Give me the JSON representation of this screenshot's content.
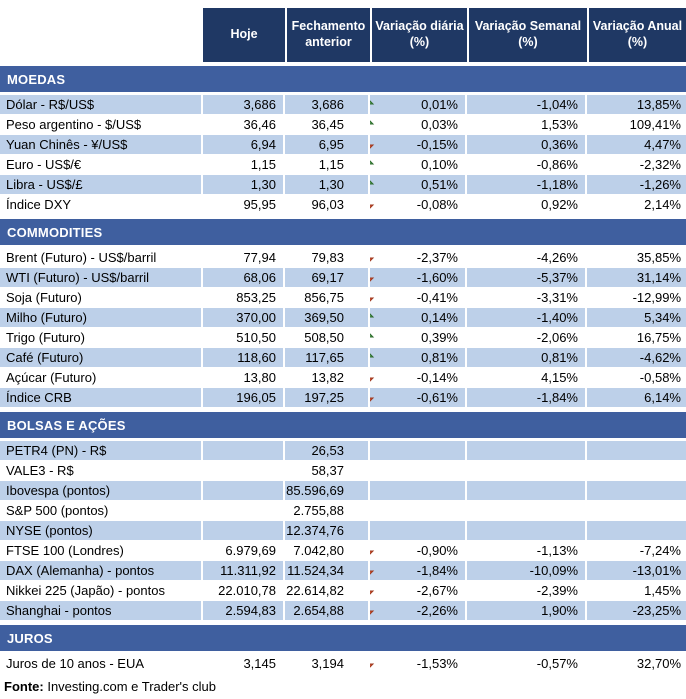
{
  "colors": {
    "header_bg": "#1F3864",
    "section_band_bg": "#3F5F9F",
    "row_shade": "#BDD0E9",
    "arrow_up": "#55A055",
    "arrow_down": "#D2502F"
  },
  "header": {
    "columns": [
      "Hoje",
      "Fechamento anterior",
      "Variação diária (%)",
      "Variação Semanal (%)",
      "Variação Anual (%)"
    ]
  },
  "sections": [
    {
      "name": "MOEDAS",
      "rows": [
        {
          "label": "Dólar - R$/US$",
          "hoje": "3,686",
          "fechamento": "3,686",
          "arrow": "up",
          "diaria": "0,01%",
          "semanal": "-1,04%",
          "anual": "13,85%"
        },
        {
          "label": "Peso argentino - $/US$",
          "hoje": "36,46",
          "fechamento": "36,45",
          "arrow": "up",
          "diaria": "0,03%",
          "semanal": "1,53%",
          "anual": "109,41%"
        },
        {
          "label": "Yuan Chinês - ¥/US$",
          "hoje": "6,94",
          "fechamento": "6,95",
          "arrow": "down",
          "diaria": "-0,15%",
          "semanal": "0,36%",
          "anual": "4,47%"
        },
        {
          "label": "Euro - US$/€",
          "hoje": "1,15",
          "fechamento": "1,15",
          "arrow": "up",
          "diaria": "0,10%",
          "semanal": "-0,86%",
          "anual": "-2,32%"
        },
        {
          "label": "Libra - US$/£",
          "hoje": "1,30",
          "fechamento": "1,30",
          "arrow": "up",
          "diaria": "0,51%",
          "semanal": "-1,18%",
          "anual": "-1,26%"
        },
        {
          "label": "Índice DXY",
          "hoje": "95,95",
          "fechamento": "96,03",
          "arrow": "down",
          "diaria": "-0,08%",
          "semanal": "0,92%",
          "anual": "2,14%"
        }
      ]
    },
    {
      "name": "COMMODITIES",
      "rows": [
        {
          "label": "Brent (Futuro) - US$/barril",
          "hoje": "77,94",
          "fechamento": "79,83",
          "arrow": "down",
          "diaria": "-2,37%",
          "semanal": "-4,26%",
          "anual": "35,85%"
        },
        {
          "label": "WTI (Futuro) - US$/barril",
          "hoje": "68,06",
          "fechamento": "69,17",
          "arrow": "down",
          "diaria": "-1,60%",
          "semanal": "-5,37%",
          "anual": "31,14%"
        },
        {
          "label": "Soja (Futuro)",
          "hoje": "853,25",
          "fechamento": "856,75",
          "arrow": "down",
          "diaria": "-0,41%",
          "semanal": "-3,31%",
          "anual": "-12,99%"
        },
        {
          "label": "Milho (Futuro)",
          "hoje": "370,00",
          "fechamento": "369,50",
          "arrow": "up",
          "diaria": "0,14%",
          "semanal": "-1,40%",
          "anual": "5,34%"
        },
        {
          "label": "Trigo (Futuro)",
          "hoje": "510,50",
          "fechamento": "508,50",
          "arrow": "up",
          "diaria": "0,39%",
          "semanal": "-2,06%",
          "anual": "16,75%"
        },
        {
          "label": "Café (Futuro)",
          "hoje": "118,60",
          "fechamento": "117,65",
          "arrow": "up",
          "diaria": "0,81%",
          "semanal": "0,81%",
          "anual": "-4,62%"
        },
        {
          "label": "Açúcar (Futuro)",
          "hoje": "13,80",
          "fechamento": "13,82",
          "arrow": "down",
          "diaria": "-0,14%",
          "semanal": "4,15%",
          "anual": "-0,58%"
        },
        {
          "label": "Índice CRB",
          "hoje": "196,05",
          "fechamento": "197,25",
          "arrow": "down",
          "diaria": "-0,61%",
          "semanal": "-1,84%",
          "anual": "6,14%"
        }
      ]
    },
    {
      "name": "BOLSAS E AÇÕES",
      "rows": [
        {
          "label": "PETR4 (PN) - R$",
          "hoje": "",
          "fechamento": "26,53",
          "arrow": "",
          "diaria": "",
          "semanal": "",
          "anual": ""
        },
        {
          "label": "VALE3 - R$",
          "hoje": "",
          "fechamento": "58,37",
          "arrow": "",
          "diaria": "",
          "semanal": "",
          "anual": ""
        },
        {
          "label": "Ibovespa (pontos)",
          "hoje": "",
          "fechamento": "85.596,69",
          "arrow": "",
          "diaria": "",
          "semanal": "",
          "anual": ""
        },
        {
          "label": "S&P 500 (pontos)",
          "hoje": "",
          "fechamento": "2.755,88",
          "arrow": "",
          "diaria": "",
          "semanal": "",
          "anual": ""
        },
        {
          "label": "NYSE (pontos)",
          "hoje": "",
          "fechamento": "12.374,76",
          "arrow": "",
          "diaria": "",
          "semanal": "",
          "anual": ""
        },
        {
          "label": "FTSE 100 (Londres)",
          "hoje": "6.979,69",
          "fechamento": "7.042,80",
          "arrow": "down",
          "diaria": "-0,90%",
          "semanal": "-1,13%",
          "anual": "-7,24%"
        },
        {
          "label": "DAX (Alemanha) - pontos",
          "hoje": "11.311,92",
          "fechamento": "11.524,34",
          "arrow": "down",
          "diaria": "-1,84%",
          "semanal": "-10,09%",
          "anual": "-13,01%"
        },
        {
          "label": "Nikkei 225 (Japão) - pontos",
          "hoje": "22.010,78",
          "fechamento": "22.614,82",
          "arrow": "down",
          "diaria": "-2,67%",
          "semanal": "-2,39%",
          "anual": "1,45%"
        },
        {
          "label": "Shanghai - pontos",
          "hoje": "2.594,83",
          "fechamento": "2.654,88",
          "arrow": "down",
          "diaria": "-2,26%",
          "semanal": "1,90%",
          "anual": "-23,25%"
        }
      ]
    },
    {
      "name": "JUROS",
      "rows": [
        {
          "label": "Juros de 10 anos - EUA",
          "hoje": "3,145",
          "fechamento": "3,194",
          "arrow": "down",
          "diaria": "-1,53%",
          "semanal": "-0,57%",
          "anual": "32,70%"
        }
      ]
    }
  ],
  "footer": {
    "label": "Fonte:",
    "text": " Investing.com e Trader's club"
  }
}
